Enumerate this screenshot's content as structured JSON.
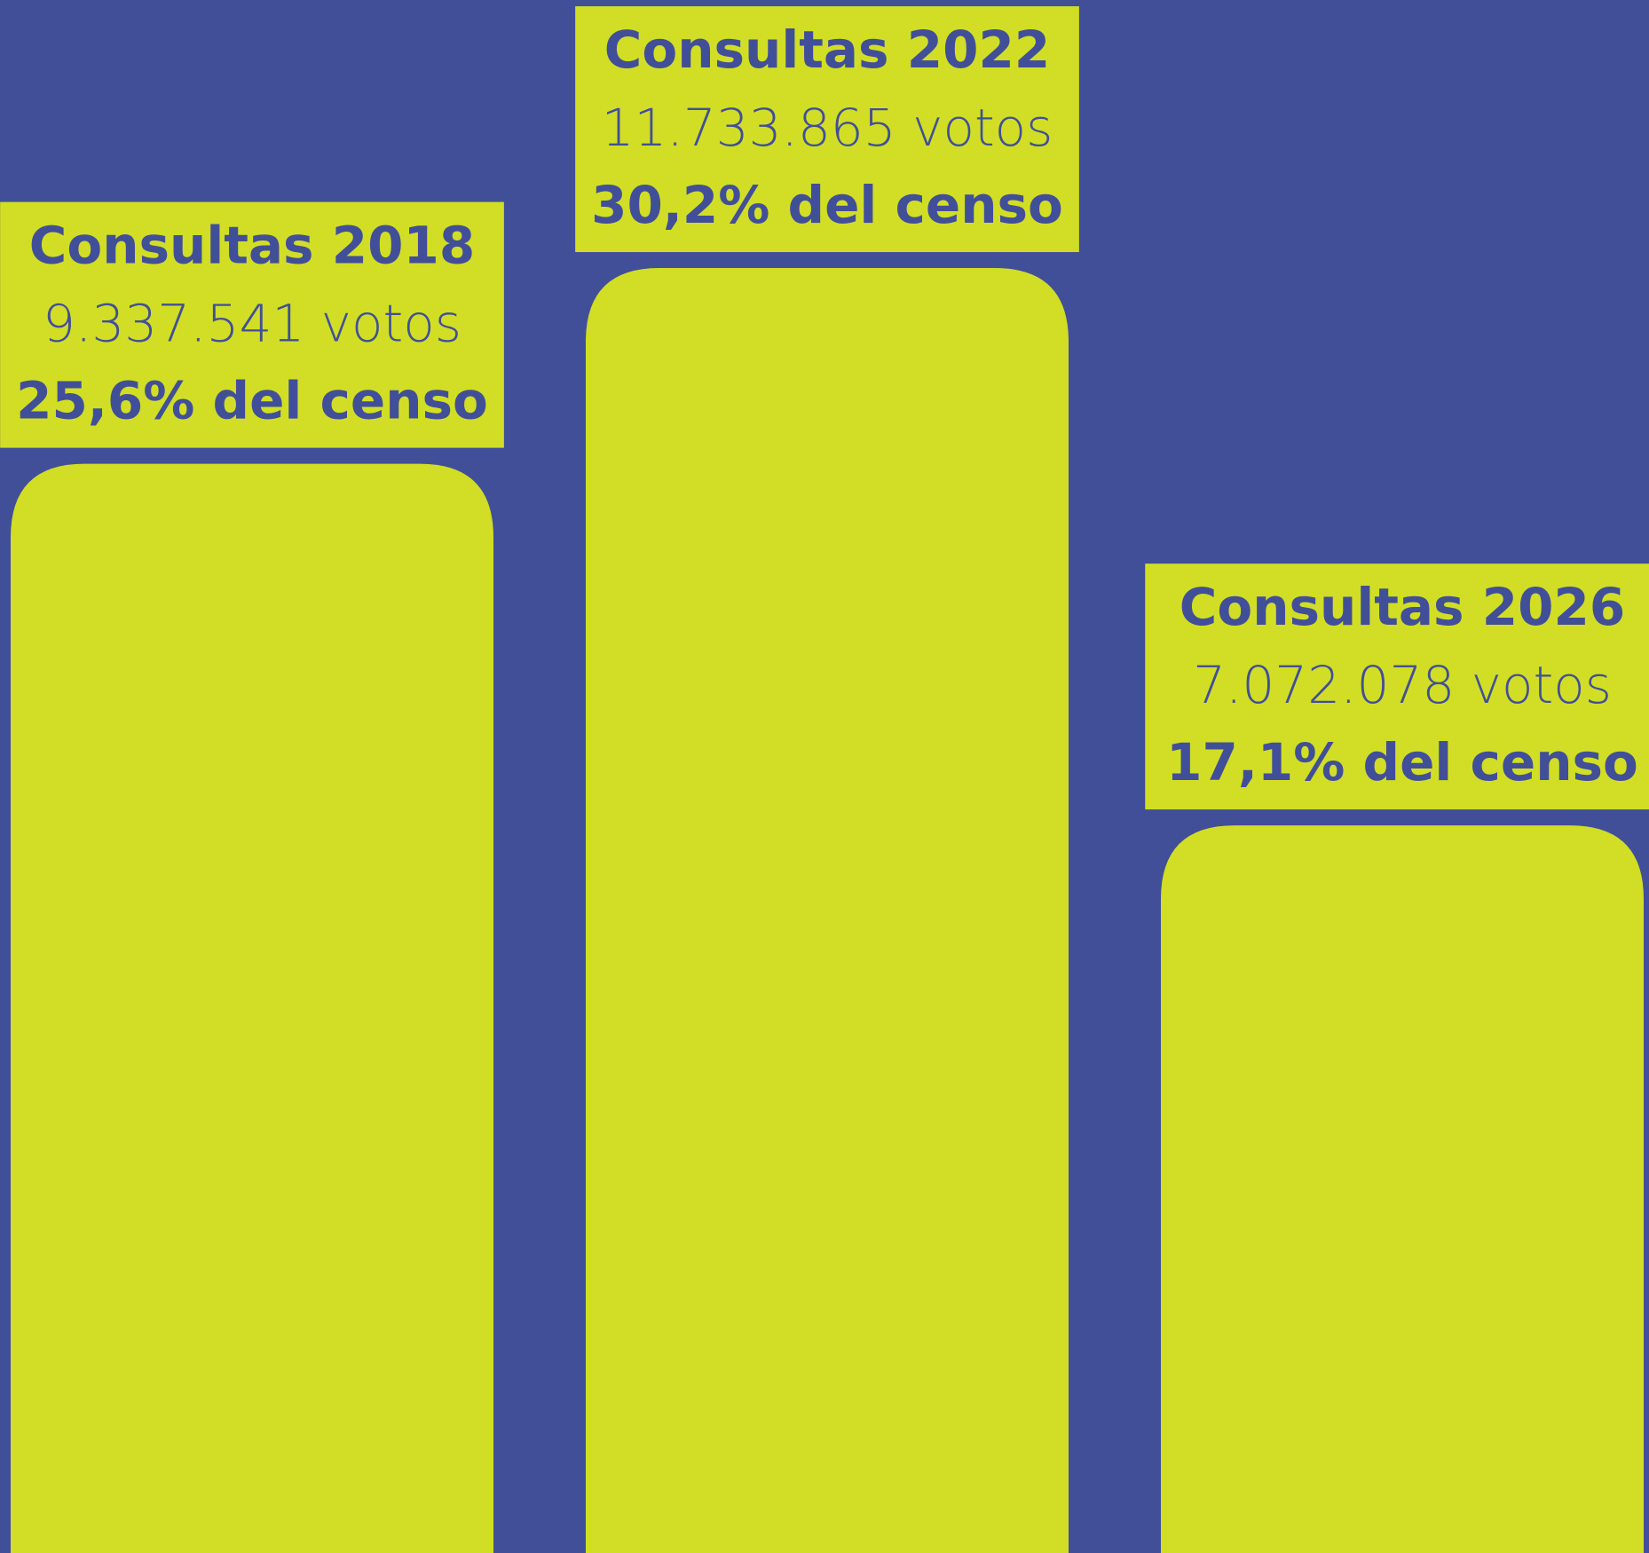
{
  "chart_data": {
    "type": "bar",
    "categories": [
      "Consultas 2018",
      "Consultas 2022",
      "Consultas 2026"
    ],
    "values": [
      25.6,
      30.2,
      17.1
    ],
    "value_labels": [
      "25,6% del censo",
      "30,2% del censo",
      "17,1% del censo"
    ],
    "votes": [
      9337541,
      11733865,
      7072078
    ],
    "vote_labels": [
      "9.337.541 votos",
      "11.733.865 votos",
      "7.072.078 votos"
    ],
    "color": "#d1de25",
    "background": "#414f98",
    "ylim": [
      0,
      36.5
    ]
  }
}
